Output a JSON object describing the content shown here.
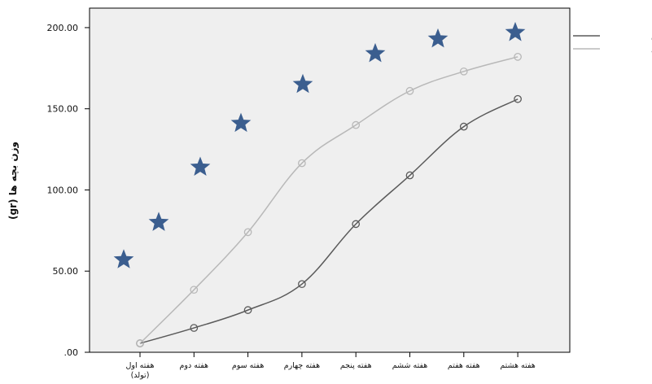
{
  "chart_data": {
    "type": "line",
    "title": "",
    "xlabel": "",
    "ylabel": "وزن بچه ها (gr)",
    "ylim": [
      0,
      212
    ],
    "y_ticks": [
      ".00",
      "50.00",
      "100.00",
      "150.00",
      "200.00"
    ],
    "y_tick_values": [
      0,
      50,
      100,
      150,
      200
    ],
    "grid": false,
    "legend_position": "right-top",
    "categories": [
      "هفته اول (تولد)",
      "هفته دوم",
      "هفته سوم",
      "هفته چهارم",
      "هفته پنجم",
      "هفته ششم",
      "هفته هفتم",
      "هفته هشتم"
    ],
    "category_lines": [
      [
        "هفته اول",
        "(تولد)"
      ],
      [
        "هفته دوم"
      ],
      [
        "هفته سوم"
      ],
      [
        "هفته چهارم"
      ],
      [
        "هفته پنجم"
      ],
      [
        "هفته ششم"
      ],
      [
        "هفته هفتم"
      ],
      [
        "هفته هشتم"
      ]
    ],
    "series": [
      {
        "name": "گروه تمرین",
        "values": [
          5.5,
          15,
          26,
          42,
          79,
          109,
          139,
          156
        ],
        "color": "#5a5a5a",
        "marker": "circle"
      },
      {
        "name": "گروه کنترل",
        "values": [
          5.5,
          38.5,
          74,
          116.5,
          140,
          161,
          173,
          182
        ],
        "color": "#b8b8b8",
        "marker": "circle"
      }
    ],
    "annotations": {
      "marker": "star",
      "color": "#3b5e8f",
      "values": [
        57,
        80,
        114,
        141,
        165,
        184,
        193,
        197
      ]
    },
    "plot_background": "#efefef"
  }
}
